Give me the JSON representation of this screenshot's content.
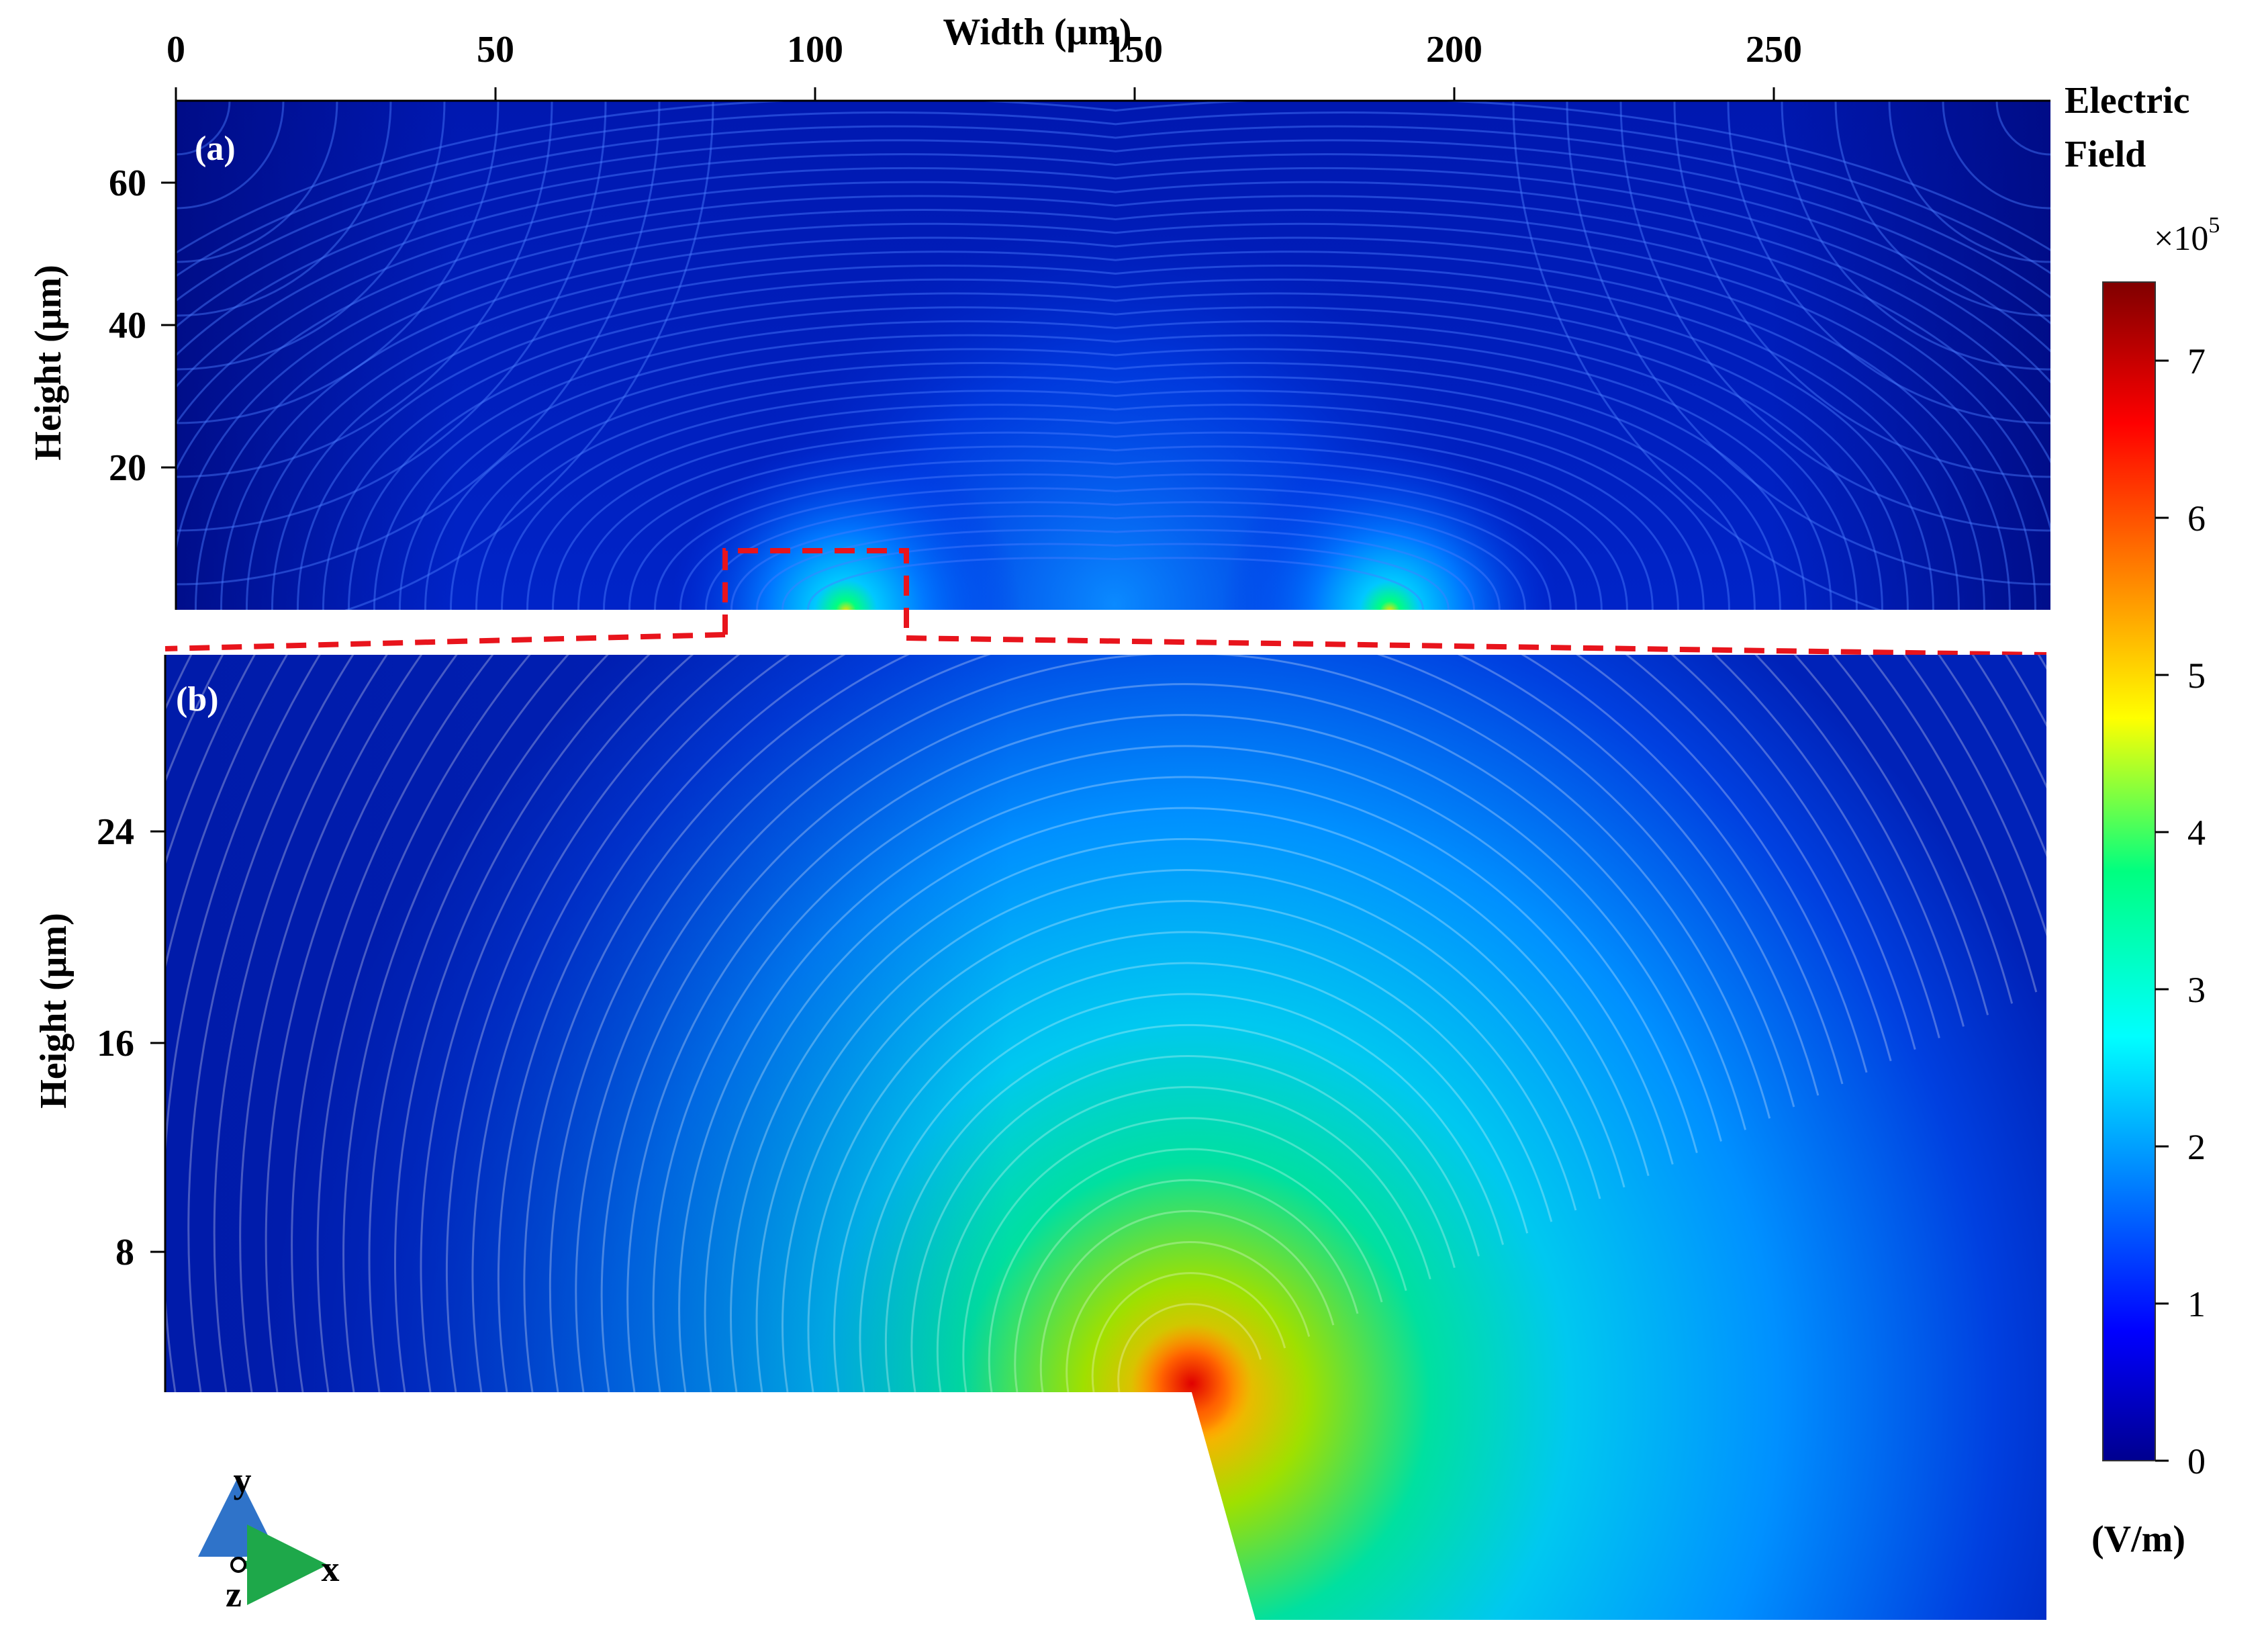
{
  "figure": {
    "top_axis_label": "Width (μm)",
    "colorbar_title_line1": "Electric",
    "colorbar_title_line2": "Field",
    "colorbar_multiplier": "×10",
    "colorbar_exponent": "5",
    "colorbar_unit": "(V/m)",
    "axis_triad": {
      "y": "y",
      "x": "x",
      "z": "z"
    },
    "colors": {
      "field_low": "#00008f",
      "field_mid": "#00bfff",
      "field_high": "#ff3a00",
      "zoom_box": "#e8141c",
      "triad_y": "#2f73c9",
      "triad_x": "#1ea84a"
    }
  },
  "chart_data": [
    {
      "type": "heatmap",
      "panel_label": "(a)",
      "xlabel": "Width (μm)",
      "ylabel": "Height  (μm)",
      "x_ticks": [
        0,
        50,
        100,
        150,
        200,
        250
      ],
      "y_ticks": [
        20,
        40,
        60
      ],
      "xlim": [
        0,
        295
      ],
      "ylim": [
        0,
        72
      ],
      "quantity": "Electric Field",
      "unit": "V/m",
      "colorbar": {
        "min": 0,
        "max": 7.5,
        "scale_factor": 100000,
        "ticks": [
          0,
          1,
          2,
          3,
          4,
          5,
          6,
          7
        ]
      },
      "features": {
        "electrode_edges_x": [
          105,
          189
        ],
        "hotspots": [
          {
            "x": 105,
            "y": 0
          },
          {
            "x": 189,
            "y": 0
          }
        ],
        "zoom_region": {
          "x": [
            86,
            114
          ],
          "y": [
            -4,
            15
          ]
        }
      }
    },
    {
      "type": "heatmap",
      "panel_label": "(b)",
      "ylabel": "Height  (μm)",
      "y_ticks": [
        8,
        16,
        24
      ],
      "quantity": "Electric Field",
      "unit": "V/m",
      "colorbar": {
        "min": 0,
        "max": 7.5,
        "scale_factor": 100000,
        "ticks": [
          0,
          1,
          2,
          3,
          4,
          5,
          6,
          7
        ]
      },
      "features": {
        "peak_field_e5": 7.5,
        "note": "magnified view of region (a) near electrode edge"
      }
    }
  ]
}
